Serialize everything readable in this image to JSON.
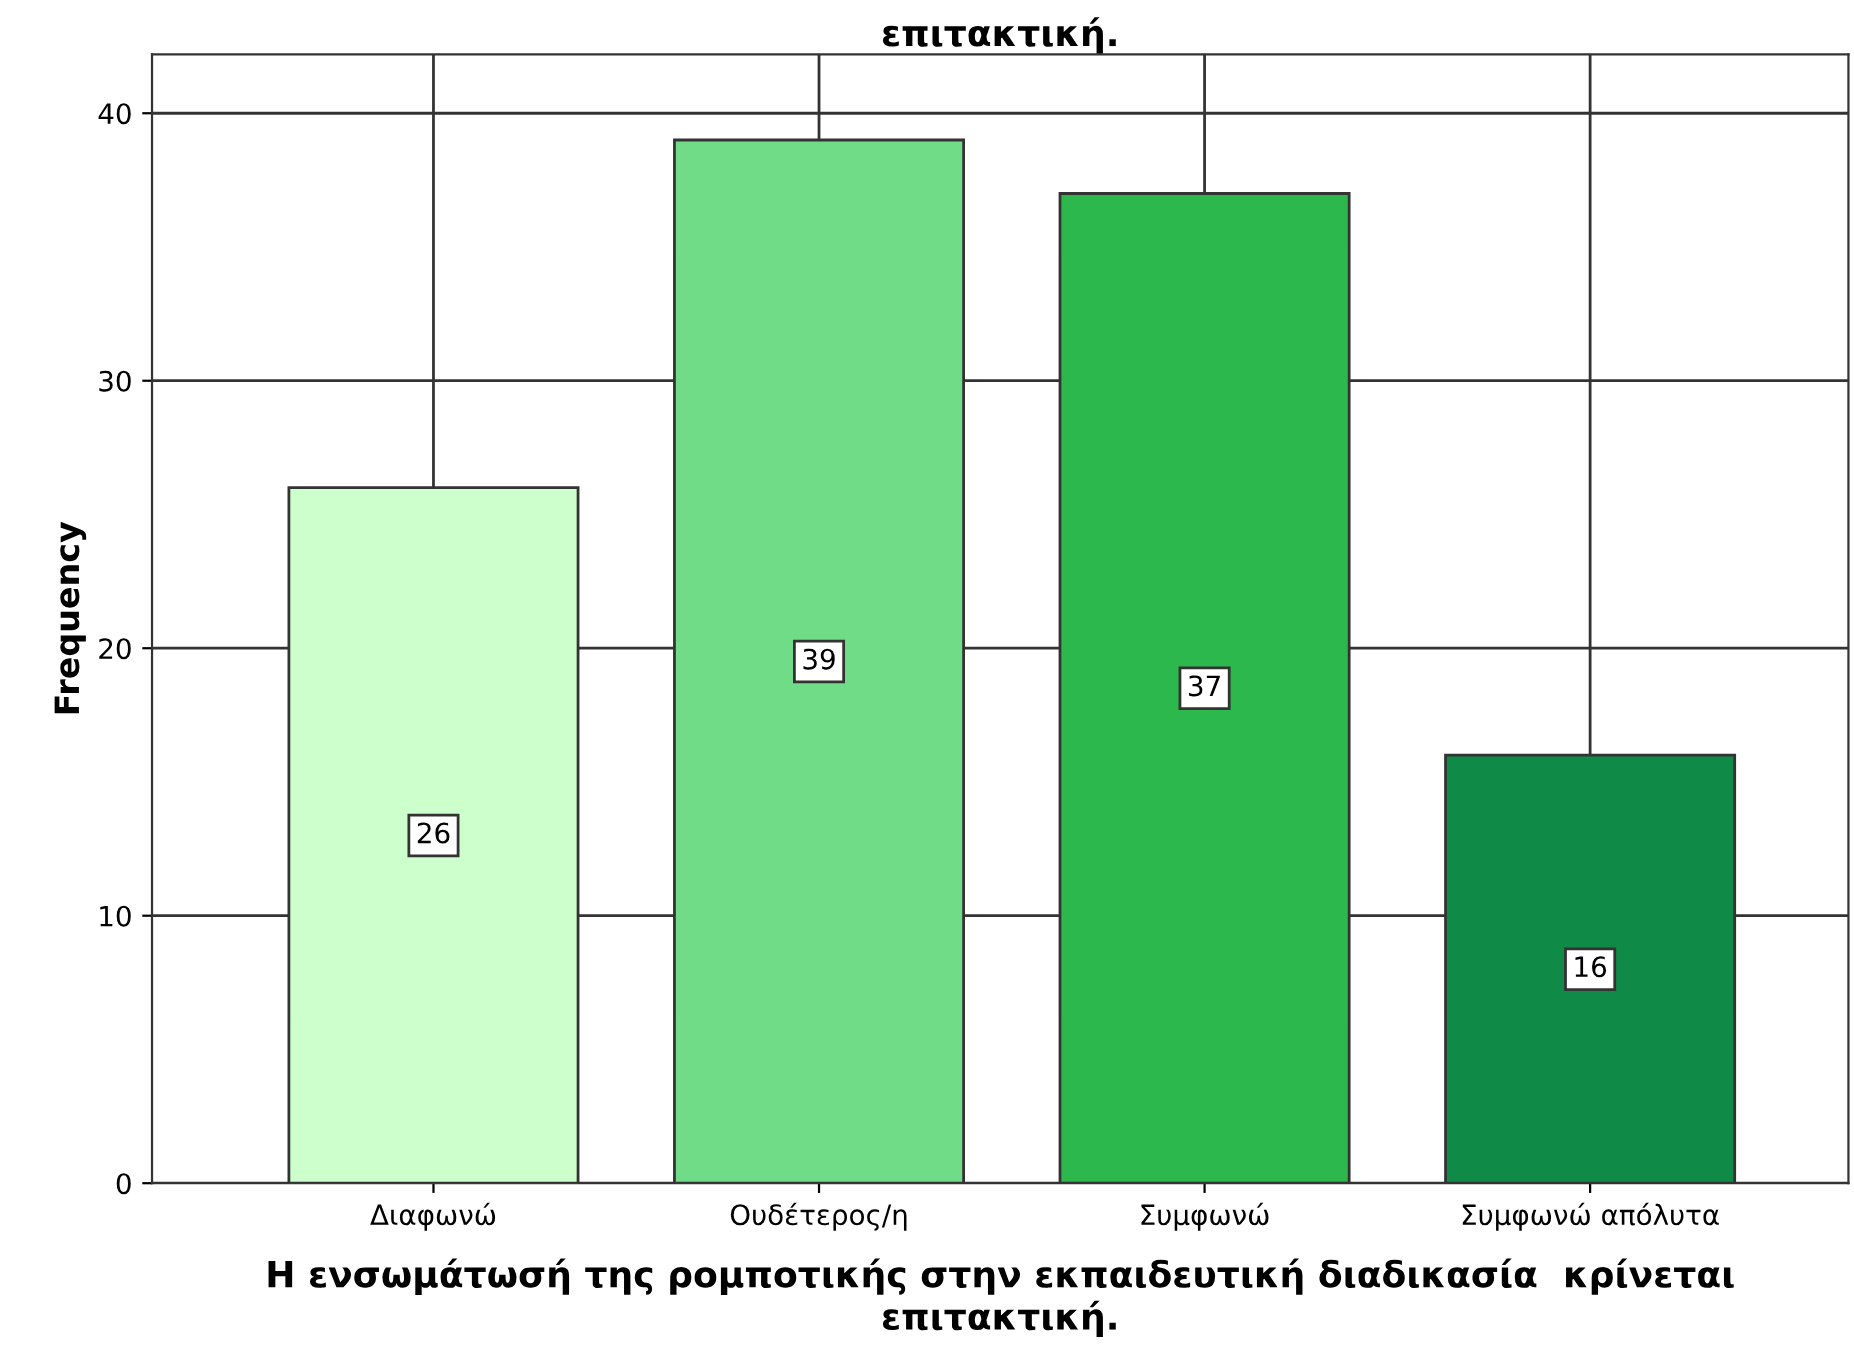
{
  "chart_data": {
    "type": "bar",
    "title": "επιτακτική.",
    "xlabel": "Η ενσωμάτωσή της ρομποτικής στην εκπαιδευτική διαδικασία  κρίνεται επιτακτική.",
    "ylabel": "Frequency",
    "categories": [
      "Διαφωνώ",
      "Ουδέτερος/η",
      "Συμφωνώ",
      "Συμφωνώ απόλυτα"
    ],
    "values": [
      26,
      39,
      37,
      16
    ],
    "colors": [
      "#ccffcc",
      "#70dc87",
      "#2db84d",
      "#0f8a47"
    ],
    "ylim": [
      0,
      42.2
    ],
    "yticks": [
      0,
      10,
      20,
      30,
      40
    ],
    "grid": true,
    "data_labels": true
  }
}
